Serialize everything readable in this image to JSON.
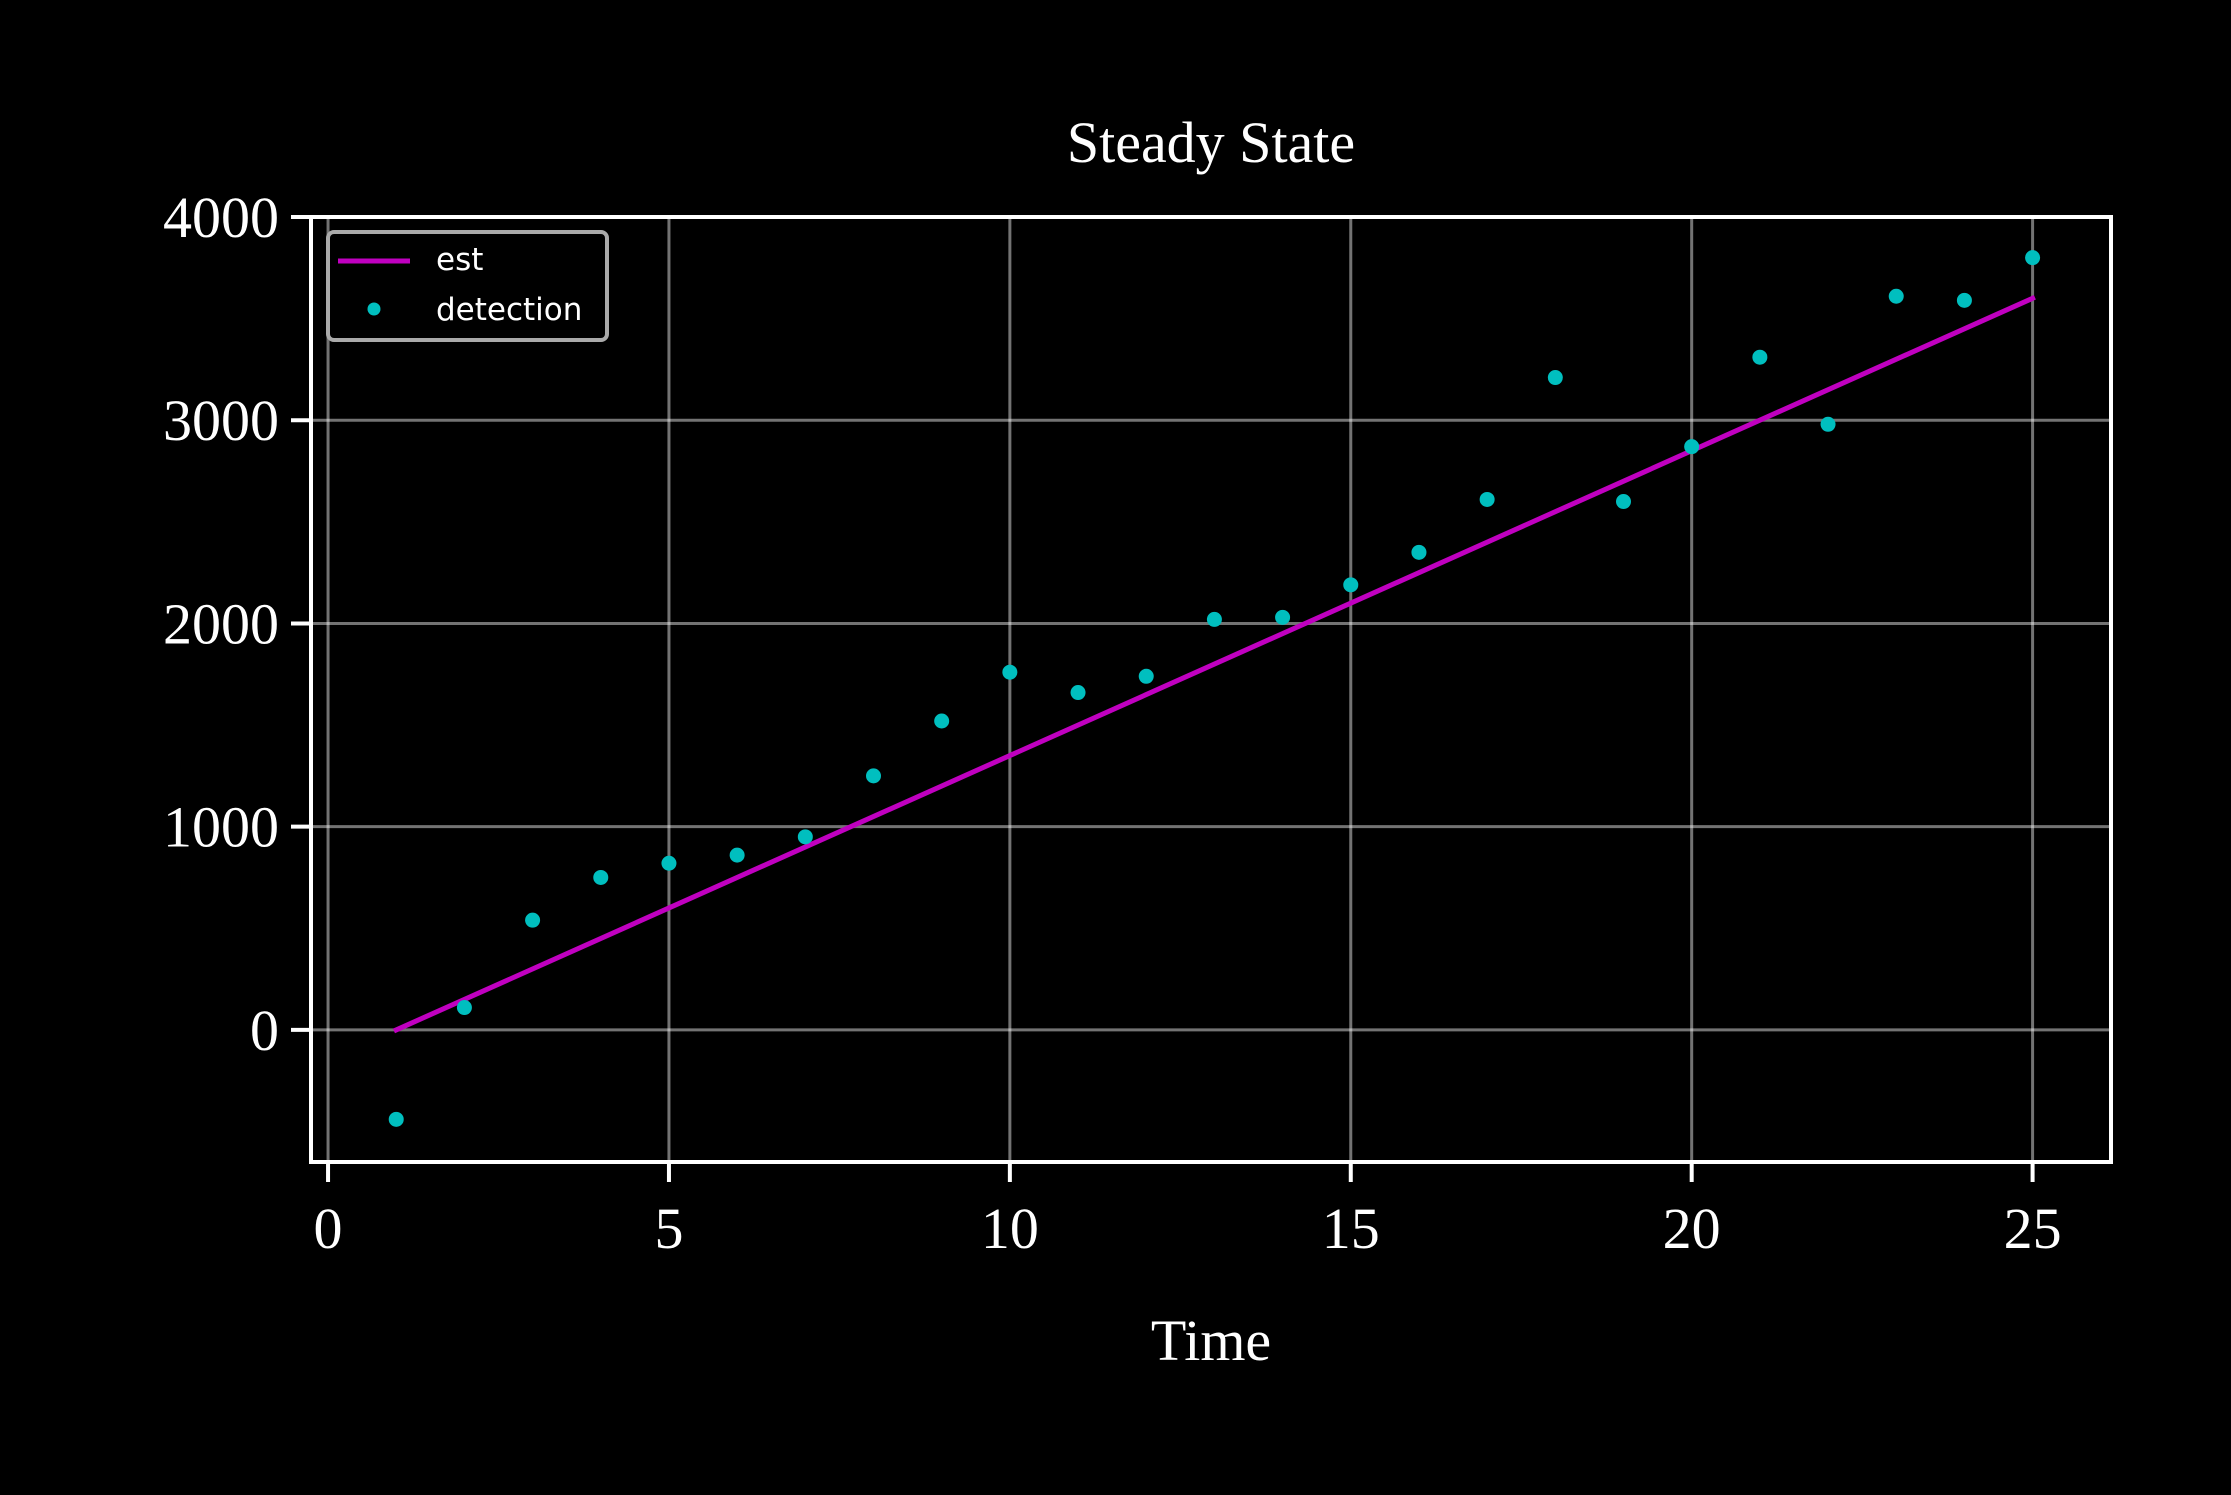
{
  "chart_data": {
    "type": "line",
    "title": "Steady State",
    "xlabel": "Time",
    "ylabel": "",
    "xlim": [
      -0.25,
      26.15
    ],
    "ylim": [
      -650,
      4000
    ],
    "xticks": [
      0,
      5,
      10,
      15,
      20,
      25
    ],
    "yticks": [
      0,
      1000,
      2000,
      3000,
      4000
    ],
    "xtick_labels": [
      "0",
      "5",
      "10",
      "15",
      "20",
      "25"
    ],
    "ytick_labels": [
      "0",
      "1000",
      "2000",
      "3000",
      "4000"
    ],
    "grid": true,
    "legend": "upper-left",
    "series": [
      {
        "name": "est",
        "kind": "line",
        "color": "#c000c0",
        "x": [
          1,
          25
        ],
        "y": [
          0,
          3600
        ]
      },
      {
        "name": "detection",
        "kind": "scatter",
        "color": "#00bfbf",
        "x": [
          1,
          2,
          3,
          4,
          5,
          6,
          7,
          8,
          9,
          10,
          11,
          12,
          13,
          14,
          15,
          16,
          17,
          18,
          19,
          20,
          21,
          22,
          23,
          24,
          25
        ],
        "y": [
          -440,
          110,
          540,
          750,
          820,
          860,
          950,
          1250,
          1520,
          1760,
          1660,
          1740,
          2020,
          2030,
          2190,
          2350,
          2610,
          3210,
          2600,
          2870,
          3310,
          2980,
          3610,
          3590,
          3800
        ]
      }
    ]
  }
}
